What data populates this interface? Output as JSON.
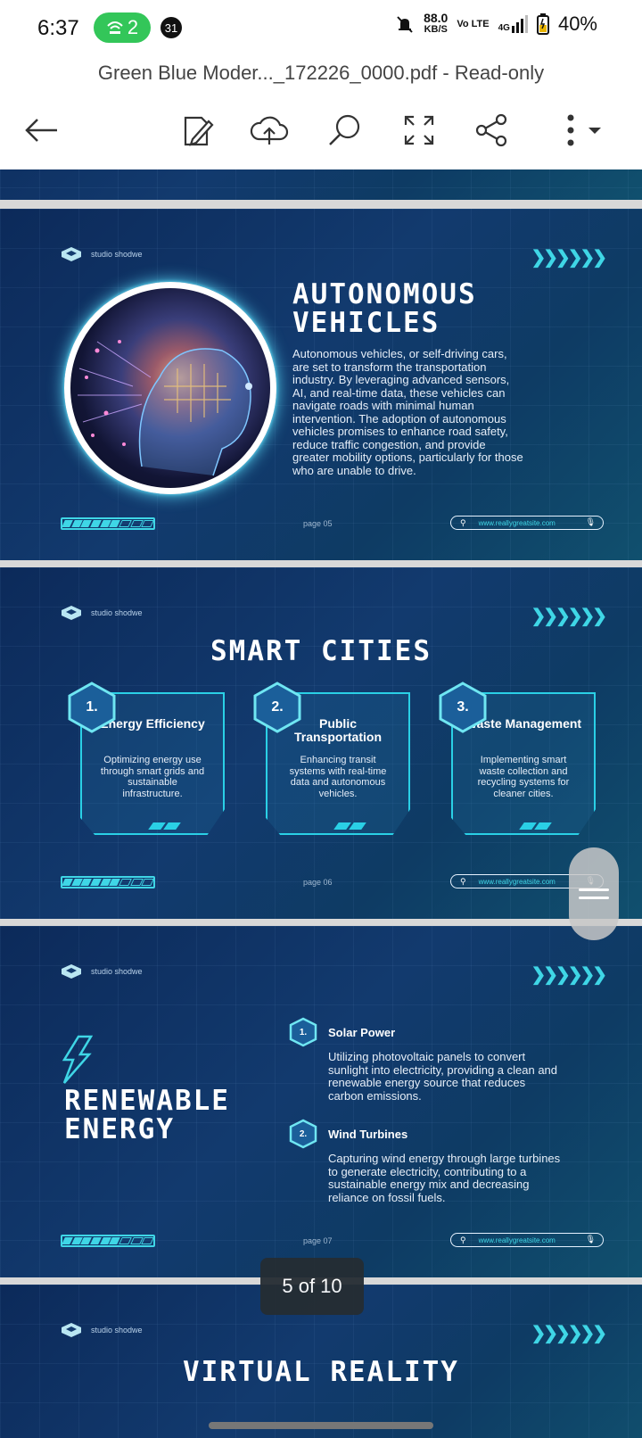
{
  "status": {
    "time": "6:37",
    "hotspot_count": "2",
    "notification_count": "31",
    "speed_value": "88.0",
    "speed_unit": "KB/S",
    "volte": "Vo LTE",
    "network": "4G",
    "battery": "40%"
  },
  "document": {
    "title": "Green Blue Moder..._172226_0000.pdf - Read-only"
  },
  "toolbar": {
    "icons": [
      "back-arrow-icon",
      "edit-icon",
      "cloud-upload-icon",
      "search-icon",
      "fullscreen-icon",
      "share-icon",
      "more-icon"
    ]
  },
  "slides": {
    "brand": "studio shodwe",
    "url": "www.reallygreatsite.com",
    "autonomous": {
      "title_line1": "AUTONOMOUS",
      "title_line2": "VEHICLES",
      "body": "Autonomous vehicles, or self-driving cars, are set to transform the transportation industry. By leveraging advanced sensors, AI, and real-time data, these vehicles can navigate roads with minimal human intervention. The adoption of autonomous vehicles promises to enhance road safety, reduce traffic congestion, and provide greater mobility options, particularly for those who are unable to drive.",
      "page": "page 05"
    },
    "smart_cities": {
      "title": "SMART CITIES",
      "page": "page 06",
      "cards": [
        {
          "num": "1.",
          "title": "Energy Efficiency",
          "body": "Optimizing energy use through smart grids and sustainable infrastructure."
        },
        {
          "num": "2.",
          "title": "Public Transportation",
          "body": "Enhancing transit systems with real-time data and autonomous vehicles."
        },
        {
          "num": "3.",
          "title": "Waste Management",
          "body": "Implementing smart waste collection and recycling systems for cleaner cities."
        }
      ]
    },
    "renewable": {
      "title_line1": "RENEWABLE",
      "title_line2": "ENERGY",
      "page": "page 07",
      "items": [
        {
          "num": "1.",
          "title": "Solar Power",
          "body": "Utilizing photovoltaic panels to convert sunlight into electricity, providing a clean and renewable energy source that reduces carbon emissions."
        },
        {
          "num": "2.",
          "title": "Wind Turbines",
          "body": "Capturing wind energy through large turbines to generate electricity, contributing to a sustainable energy mix and decreasing reliance on fossil fuels."
        }
      ]
    },
    "virtual": {
      "title": "VIRTUAL REALITY"
    }
  },
  "page_indicator": "5 of 10",
  "colors": {
    "accent": "#3fd6e6",
    "slide_bg": "#123a6e"
  }
}
